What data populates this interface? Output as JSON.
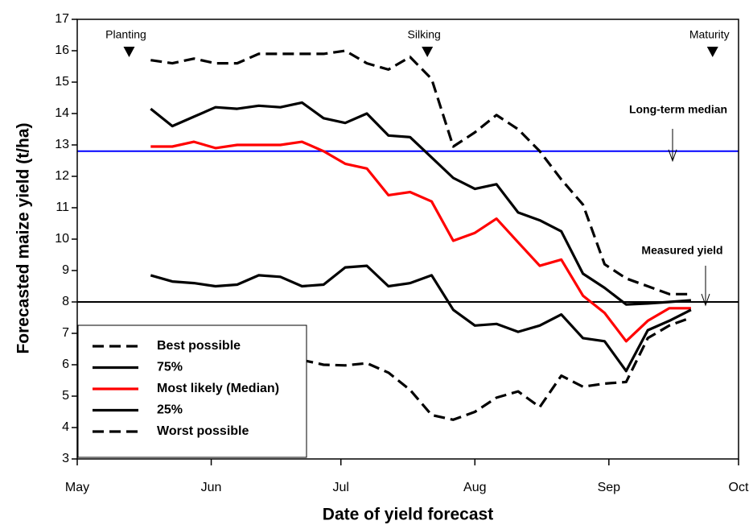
{
  "chart_data": {
    "type": "line",
    "xlabel": "Date of yield forecast",
    "ylabel": "Forecasted maize yield (t/ha)",
    "x": [
      17,
      22,
      27,
      32,
      37,
      42,
      47,
      52,
      57,
      62,
      67,
      72,
      77,
      82,
      87,
      92,
      97,
      102,
      107,
      112,
      117,
      122,
      127,
      132,
      137,
      142
    ],
    "xlim": [
      0,
      153
    ],
    "xticks": [
      {
        "value": 0,
        "label": "May"
      },
      {
        "value": 31,
        "label": "Jun"
      },
      {
        "value": 61,
        "label": "Jul"
      },
      {
        "value": 92,
        "label": "Aug"
      },
      {
        "value": 123,
        "label": "Sep"
      },
      {
        "value": 153,
        "label": "Oct"
      }
    ],
    "ylim": [
      3,
      17
    ],
    "yticks": [
      3,
      4,
      5,
      6,
      7,
      8,
      9,
      10,
      11,
      12,
      13,
      14,
      15,
      16,
      17
    ],
    "grid": false,
    "legend": "lower left",
    "series": [
      {
        "name": "Best possible",
        "color": "#000000",
        "style": "dashed",
        "values": [
          15.7,
          15.6,
          15.75,
          15.6,
          15.6,
          15.9,
          15.9,
          15.9,
          15.9,
          16.0,
          15.6,
          15.4,
          15.8,
          15.1,
          12.95,
          13.4,
          13.95,
          13.5,
          12.8,
          11.9,
          11.1,
          9.2,
          8.75,
          8.5,
          8.25,
          8.25
        ]
      },
      {
        "name": "75%",
        "color": "#000000",
        "style": "solid",
        "values": [
          14.15,
          13.6,
          13.9,
          14.2,
          14.15,
          14.25,
          14.2,
          14.35,
          13.85,
          13.7,
          14.0,
          13.3,
          13.25,
          12.6,
          11.95,
          11.6,
          11.75,
          10.85,
          10.6,
          10.25,
          8.9,
          8.45,
          7.92,
          7.95,
          8.0,
          8.05
        ]
      },
      {
        "name": "Most likely (Median)",
        "color": "#ff0000",
        "style": "solid",
        "values": [
          12.95,
          12.95,
          13.1,
          12.9,
          13.0,
          13.0,
          13.0,
          13.1,
          12.8,
          12.4,
          12.25,
          11.4,
          11.5,
          11.2,
          9.95,
          10.2,
          10.65,
          9.9,
          9.15,
          9.35,
          8.2,
          7.65,
          6.75,
          7.4,
          7.8,
          7.8
        ]
      },
      {
        "name": "25%",
        "color": "#000000",
        "style": "solid",
        "values": [
          8.85,
          8.65,
          8.6,
          8.5,
          8.55,
          8.85,
          8.8,
          8.5,
          8.55,
          9.1,
          9.15,
          8.5,
          8.6,
          8.85,
          7.75,
          7.25,
          7.3,
          7.05,
          7.25,
          7.6,
          6.85,
          6.75,
          5.8,
          7.1,
          7.4,
          7.75
        ]
      },
      {
        "name": "Worst possible",
        "color": "#000000",
        "style": "dashed",
        "values": [
          null,
          null,
          null,
          null,
          null,
          null,
          null,
          6.15,
          6.0,
          5.98,
          6.05,
          5.75,
          5.2,
          4.4,
          4.25,
          4.5,
          4.95,
          5.15,
          4.65,
          5.65,
          5.3,
          5.4,
          5.45,
          6.85,
          7.25,
          7.5
        ]
      }
    ],
    "reference_lines": [
      {
        "label": "Long-term median",
        "value": 12.8,
        "color": "#0000ff"
      },
      {
        "label": "Measured yield",
        "value": 8,
        "color": "#000000"
      }
    ],
    "events": [
      {
        "label": "Planting",
        "x": 12
      },
      {
        "label": "Silking",
        "x": 81
      },
      {
        "label": "Maturity",
        "x": 147
      }
    ]
  }
}
